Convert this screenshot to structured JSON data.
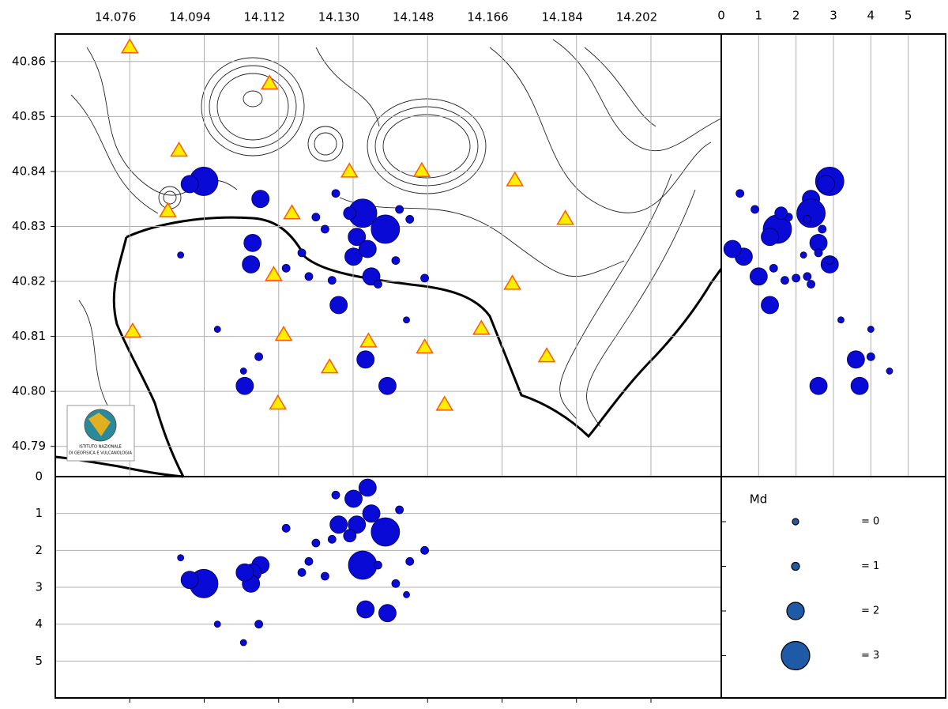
{
  "chart_data": {
    "type": "seismicity-map",
    "logo_text": [
      "ISTITUTO NAZIONALE",
      "DI GEOFISICA E VULCANOLOGIA"
    ],
    "xlim": [
      14.058,
      14.219
    ],
    "xticks": [
      14.076,
      14.094,
      14.112,
      {
        "value": 14.13,
        "label": "14.130"
      },
      14.148,
      14.166,
      14.184,
      14.202
    ],
    "ylim": [
      40.7845,
      40.865
    ],
    "yticks": [
      40.79,
      {
        "value": 40.8,
        "label": "40.80"
      },
      40.81,
      40.82,
      40.83,
      40.84,
      40.85,
      40.86
    ],
    "depth_lim": [
      0,
      6.0
    ],
    "depth_ticks": [
      0,
      1,
      2,
      3,
      4,
      5
    ],
    "grid": true,
    "events": {
      "color": "#0a0ad6",
      "edge": "#00005a",
      "lon": [
        14.0939,
        14.0905,
        14.1076,
        14.1057,
        14.1053,
        14.1323,
        14.1378,
        14.1309,
        14.1344,
        14.1301,
        14.1335,
        14.1265,
        14.133,
        14.1383,
        14.1038,
        14.0883,
        14.0972,
        14.1072,
        14.1035,
        14.1429,
        14.121,
        14.1258,
        14.1437,
        14.1473,
        14.1193,
        14.1138,
        14.1232,
        14.1249,
        14.1403,
        14.136,
        14.1176,
        14.1412,
        14.1292
      ],
      "lat": [
        40.8382,
        40.8377,
        40.835,
        40.827,
        40.8231,
        40.8324,
        40.8295,
        40.8281,
        40.8209,
        40.8245,
        40.8259,
        40.8157,
        40.8058,
        40.801,
        40.801,
        40.8248,
        40.8113,
        40.8063,
        40.8037,
        40.813,
        40.8317,
        40.836,
        40.8313,
        40.8206,
        40.8209,
        40.8224,
        40.8295,
        40.8202,
        40.8238,
        40.8195,
        40.8252,
        40.8331,
        40.8324
      ],
      "depth": [
        2.9,
        2.8,
        2.4,
        2.6,
        2.9,
        2.4,
        1.5,
        1.3,
        1.0,
        0.6,
        0.3,
        1.3,
        3.6,
        3.7,
        2.6,
        2.2,
        4.0,
        4.0,
        4.5,
        3.2,
        1.8,
        0.5,
        2.3,
        2.0,
        2.3,
        1.4,
        2.7,
        1.7,
        2.9,
        2.4,
        2.6,
        0.9,
        1.6
      ],
      "md": [
        3,
        2,
        2,
        2,
        2,
        3,
        3,
        2,
        2,
        2,
        2,
        2,
        2,
        2,
        2,
        0,
        0,
        1,
        0,
        0,
        1,
        1,
        1,
        1,
        1,
        1,
        1,
        1,
        1,
        1,
        1,
        1,
        1.5
      ]
    },
    "stations": {
      "color": "#ffee00",
      "edge": "#ff5a00",
      "lon": [
        14.076,
        14.1098,
        14.0879,
        14.0852,
        14.1152,
        14.1291,
        14.1466,
        14.1691,
        14.1813,
        14.1108,
        14.0767,
        14.1132,
        14.1243,
        14.1337,
        14.1473,
        14.161,
        14.1685,
        14.1768,
        14.1118,
        14.1521
      ],
      "lat": [
        40.8626,
        40.856,
        40.8438,
        40.8328,
        40.8324,
        40.84,
        40.8401,
        40.8384,
        40.8314,
        40.8212,
        40.8109,
        40.8103,
        40.8044,
        40.8091,
        40.808,
        40.8114,
        40.8196,
        40.8064,
        40.7978,
        40.7976
      ]
    },
    "legend": {
      "title": "Md",
      "color": "#1f5aa6",
      "values": [
        0,
        1,
        2,
        3
      ],
      "value_labels": [
        "= 0",
        "= 1",
        "= 2",
        "= 3"
      ]
    }
  }
}
